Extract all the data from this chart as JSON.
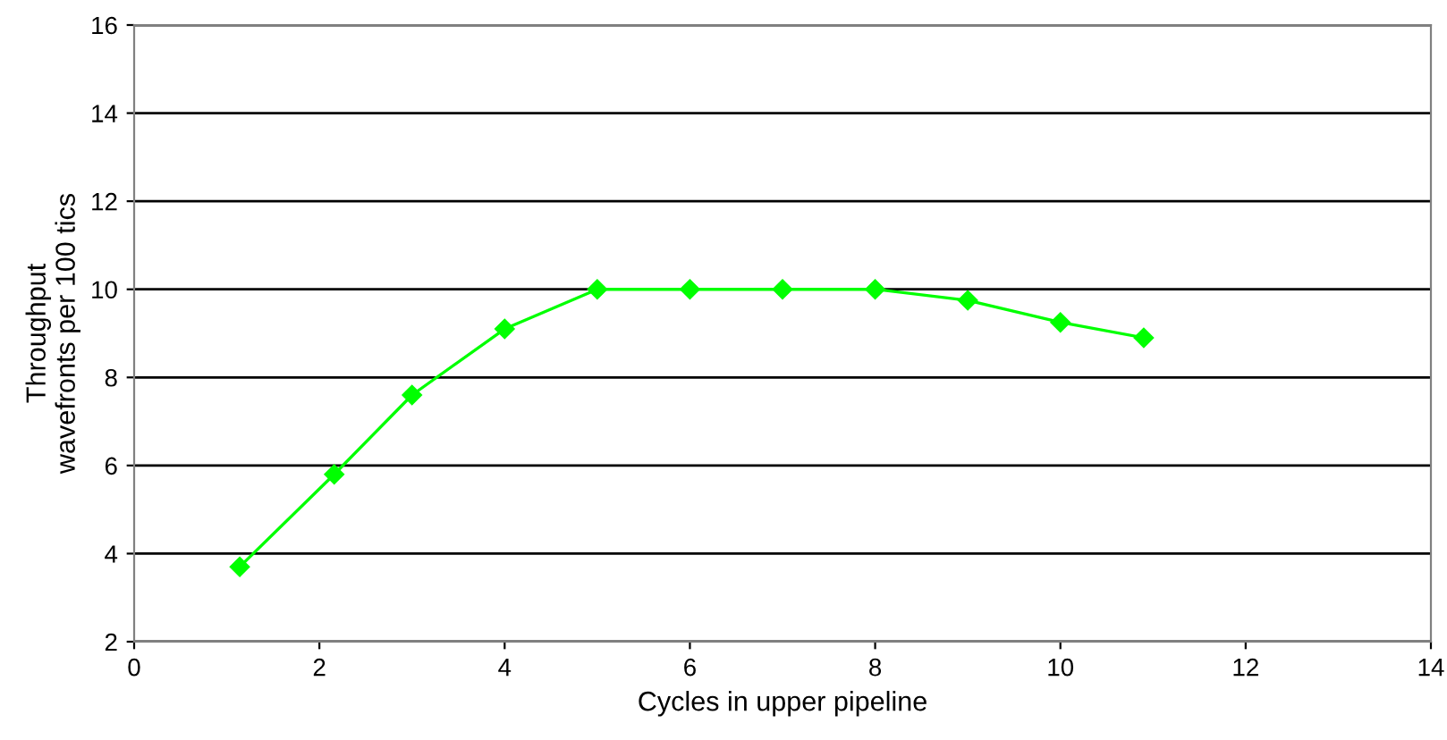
{
  "chart_data": {
    "type": "line",
    "xlabel": "Cycles in upper pipeline",
    "ylabel": "Throughput\nwavefronts per 100 tics",
    "x": [
      1.14,
      2.16,
      3.0,
      4.0,
      5.0,
      6.0,
      7.0,
      8.0,
      9.0,
      10.0,
      10.9
    ],
    "series": [
      {
        "color": "#00ff00",
        "values": [
          3.7,
          5.8,
          7.6,
          9.1,
          10.0,
          10.0,
          10.0,
          10.0,
          9.75,
          9.25,
          8.9
        ]
      }
    ],
    "xlim": [
      0,
      14
    ],
    "xticks": [
      0,
      2,
      4,
      6,
      8,
      10,
      12,
      14
    ],
    "ylim": [
      2,
      16
    ],
    "yticks": [
      2,
      4,
      6,
      8,
      10,
      12,
      14,
      16
    ],
    "grid": "y",
    "marker": "diamond",
    "line_style": "solid",
    "legend": false
  }
}
